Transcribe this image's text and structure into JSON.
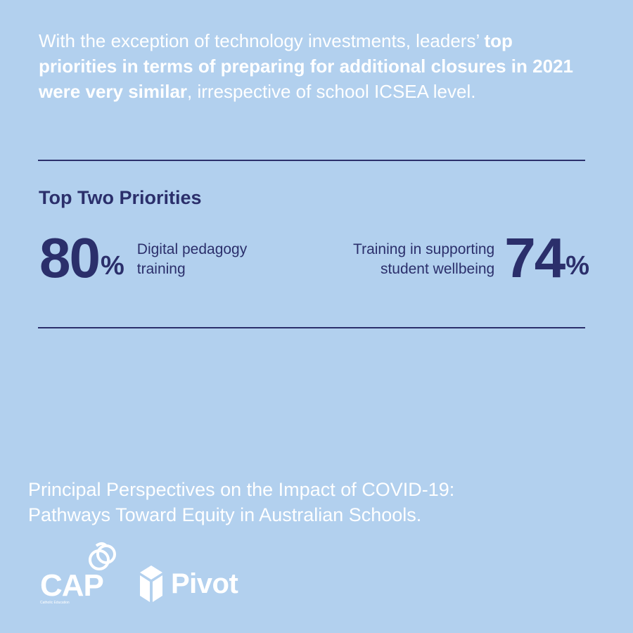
{
  "intro": {
    "part1": "With the exception of technology investments, leaders’ ",
    "bold": "top priorities in terms of preparing for additional closures in 2021 were very similar",
    "part2": ", irrespective of school ICSEA level."
  },
  "heading": "Top Two Priorities",
  "stats": [
    {
      "value": "80",
      "unit": "%",
      "label_line1": "Digital pedagogy",
      "label_line2": "training"
    },
    {
      "value": "74",
      "unit": "%",
      "label_line1": "Training in supporting",
      "label_line2": "student wellbeing"
    }
  ],
  "source": {
    "line1": "Principal Perspectives on the Impact of COVID-19:",
    "line2": "Pathways Toward Equity in Australian Schools."
  },
  "logos": {
    "cap": {
      "text": "CAP",
      "tagline": "Catholic Education"
    },
    "pivot": {
      "text": "Pivot"
    }
  },
  "colors": {
    "background": "#b2d0ee",
    "navy": "#2b2f6b",
    "white": "#ffffff"
  }
}
